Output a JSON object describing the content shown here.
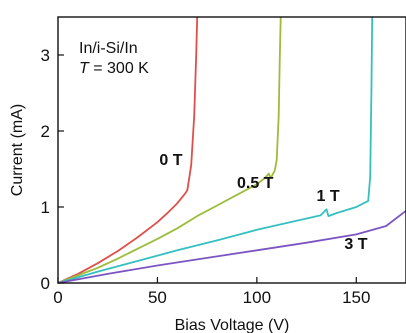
{
  "chart_data": {
    "type": "line",
    "xlabel": "Bias Voltage (V)",
    "ylabel": "Current (mA)",
    "xlim": [
      0,
      175
    ],
    "ylim": [
      0,
      3.5
    ],
    "x_ticks": [
      0,
      50,
      100,
      150
    ],
    "y_ticks": [
      0,
      1,
      2,
      3
    ],
    "grid": false,
    "annotation": {
      "line1": "In/i-Si/In",
      "line2_var": "T",
      "line2_rest": " = 300 K"
    },
    "series": [
      {
        "name": "0 T",
        "color": "#e0504a",
        "points": [
          [
            0,
            0
          ],
          [
            10,
            0.12
          ],
          [
            20,
            0.26
          ],
          [
            30,
            0.42
          ],
          [
            40,
            0.6
          ],
          [
            50,
            0.8
          ],
          [
            55,
            0.92
          ],
          [
            60,
            1.05
          ],
          [
            64,
            1.18
          ],
          [
            65,
            1.22
          ],
          [
            67,
            1.55
          ],
          [
            68.5,
            2.2
          ],
          [
            69.5,
            3.0
          ],
          [
            70,
            3.5
          ]
        ]
      },
      {
        "name": "0.5 T",
        "color": "#9cbc3a",
        "points": [
          [
            0,
            0
          ],
          [
            10,
            0.1
          ],
          [
            20,
            0.2
          ],
          [
            30,
            0.32
          ],
          [
            40,
            0.45
          ],
          [
            50,
            0.58
          ],
          [
            60,
            0.72
          ],
          [
            70,
            0.88
          ],
          [
            80,
            1.02
          ],
          [
            90,
            1.16
          ],
          [
            100,
            1.3
          ],
          [
            104,
            1.38
          ],
          [
            106,
            1.44
          ],
          [
            107,
            1.38
          ],
          [
            109,
            1.48
          ],
          [
            110,
            1.62
          ],
          [
            111,
            2.2
          ],
          [
            111.5,
            2.9
          ],
          [
            112,
            3.5
          ]
        ]
      },
      {
        "name": "1 T",
        "color": "#35c0bf",
        "points": [
          [
            0,
            0
          ],
          [
            20,
            0.15
          ],
          [
            40,
            0.29
          ],
          [
            60,
            0.43
          ],
          [
            80,
            0.56
          ],
          [
            100,
            0.7
          ],
          [
            120,
            0.82
          ],
          [
            132,
            0.89
          ],
          [
            135,
            0.97
          ],
          [
            136,
            0.88
          ],
          [
            140,
            0.92
          ],
          [
            150,
            1.0
          ],
          [
            156,
            1.08
          ],
          [
            157,
            1.4
          ],
          [
            157.6,
            2.5
          ],
          [
            158,
            3.5
          ]
        ]
      },
      {
        "name": "3 T",
        "color": "#7b56c2",
        "points": [
          [
            0,
            0
          ],
          [
            25,
            0.12
          ],
          [
            50,
            0.23
          ],
          [
            75,
            0.33
          ],
          [
            100,
            0.43
          ],
          [
            125,
            0.53
          ],
          [
            150,
            0.64
          ],
          [
            165,
            0.75
          ],
          [
            175,
            0.95
          ]
        ]
      }
    ],
    "series_labels": [
      {
        "series": 0,
        "x": 51,
        "y": 1.55
      },
      {
        "series": 1,
        "x": 90,
        "y": 1.25
      },
      {
        "series": 2,
        "x": 130,
        "y": 1.08
      },
      {
        "series": 3,
        "x": 144,
        "y": 0.45
      }
    ]
  }
}
